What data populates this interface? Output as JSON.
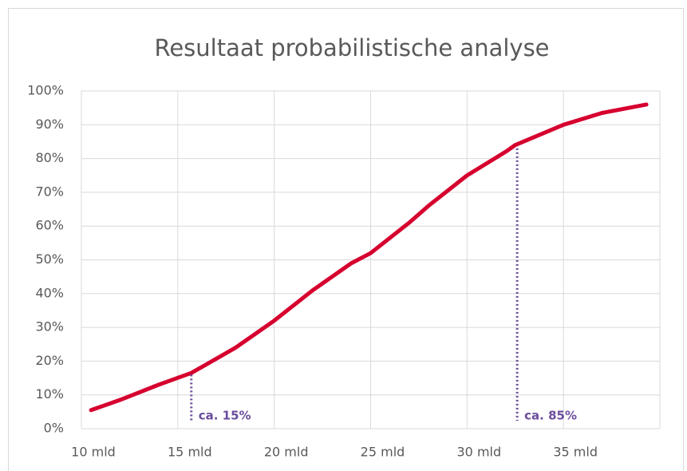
{
  "chart_data": {
    "type": "line",
    "title": "Resultaat probabilistische analyse",
    "x": [
      10.5,
      12,
      14,
      15.7,
      18,
      20,
      22,
      24,
      25,
      27,
      28,
      30,
      32,
      32.5,
      35,
      37,
      39.3
    ],
    "series": [
      {
        "color": "#d6002f",
        "values": [
          5.5,
          8.5,
          13,
          16.5,
          24,
          32,
          41,
          49,
          52,
          61,
          66,
          75,
          82,
          84,
          90,
          93.5,
          96
        ]
      }
    ],
    "xlim": [
      10,
      40
    ],
    "xticks": [
      {
        "value": 10,
        "label": "10 mld"
      },
      {
        "value": 15,
        "label": "15 mld"
      },
      {
        "value": 20,
        "label": "20 mld"
      },
      {
        "value": 25,
        "label": "25 mld"
      },
      {
        "value": 30,
        "label": "30 mld"
      },
      {
        "value": 35,
        "label": "35 mld"
      },
      {
        "value": 40,
        "label": ""
      }
    ],
    "ylim": [
      0,
      100
    ],
    "yticks": [
      {
        "value": 0,
        "label": "0%"
      },
      {
        "value": 10,
        "label": "10%"
      },
      {
        "value": 20,
        "label": "20%"
      },
      {
        "value": 30,
        "label": "30%"
      },
      {
        "value": 40,
        "label": "40%"
      },
      {
        "value": 50,
        "label": "50%"
      },
      {
        "value": 60,
        "label": "60%"
      },
      {
        "value": 70,
        "label": "70%"
      },
      {
        "value": 80,
        "label": "80%"
      },
      {
        "value": 90,
        "label": "90%"
      },
      {
        "value": 100,
        "label": "100%"
      }
    ],
    "grid": true,
    "annotations": [
      {
        "x": 15.7,
        "y": 16,
        "label": "ca. 15%",
        "color": "#6a4c9c"
      },
      {
        "x": 32.6,
        "y": 83,
        "label": "ca. 85%",
        "color": "#6a4c9c"
      }
    ]
  }
}
